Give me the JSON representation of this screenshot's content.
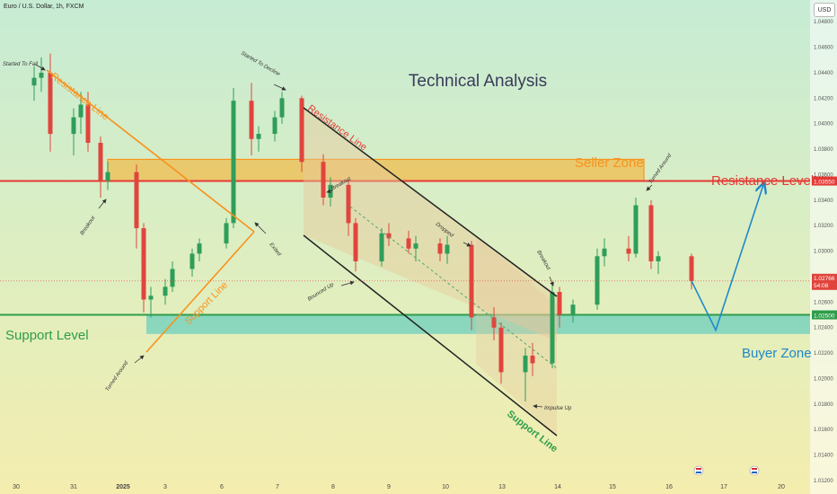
{
  "header": {
    "symbol_title": "Euro / U.S. Dollar, 1h, FXCM",
    "currency_button": "USD"
  },
  "chart_data": {
    "type": "candlestick",
    "title": "Technical Analysis",
    "ylim": [
      1.012,
      1.049
    ],
    "y_ticks": [
      "1.04800",
      "1.04600",
      "1.04400",
      "1.04200",
      "1.04000",
      "1.03800",
      "1.03600",
      "1.03400",
      "1.03200",
      "1.03000",
      "1.02800",
      "1.02600",
      "1.02400",
      "1.02200",
      "1.02000",
      "1.01800",
      "1.01600",
      "1.01400",
      "1.01200"
    ],
    "x_ticks": [
      "30",
      "31",
      "2025",
      "3",
      "6",
      "7",
      "8",
      "9",
      "10",
      "13",
      "14",
      "15",
      "16",
      "17",
      "20"
    ],
    "price_labels": {
      "resistance": "1.03550",
      "current_price": "1.02766",
      "countdown": "54:08",
      "support": "1.02500"
    },
    "series": [
      {
        "period": "30",
        "open": 1.043,
        "high": 1.0445,
        "low": 1.0418,
        "close": 1.0436
      },
      {
        "period": "30",
        "open": 1.0436,
        "high": 1.0452,
        "low": 1.0425,
        "close": 1.044
      },
      {
        "period": "30b",
        "open": 1.044,
        "high": 1.0455,
        "low": 1.0378,
        "close": 1.0392
      },
      {
        "period": "31",
        "open": 1.0392,
        "high": 1.0412,
        "low": 1.0375,
        "close": 1.0405
      },
      {
        "period": "31",
        "open": 1.0405,
        "high": 1.0425,
        "low": 1.0392,
        "close": 1.0415
      },
      {
        "period": "31",
        "open": 1.0415,
        "high": 1.0425,
        "low": 1.0378,
        "close": 1.0385
      },
      {
        "period": "31b",
        "open": 1.0385,
        "high": 1.039,
        "low": 1.0342,
        "close": 1.0355
      },
      {
        "period": "31b",
        "open": 1.0355,
        "high": 1.037,
        "low": 1.0348,
        "close": 1.0362
      },
      {
        "period": "2025",
        "open": 1.0362,
        "high": 1.0368,
        "low": 1.0302,
        "close": 1.0318
      },
      {
        "period": "2025",
        "open": 1.0318,
        "high": 1.0322,
        "low": 1.0252,
        "close": 1.0262
      },
      {
        "period": "2025b",
        "open": 1.0262,
        "high": 1.0272,
        "low": 1.0248,
        "close": 1.0265
      },
      {
        "period": "3",
        "open": 1.0265,
        "high": 1.0278,
        "low": 1.0258,
        "close": 1.0272
      },
      {
        "period": "3",
        "open": 1.0272,
        "high": 1.0292,
        "low": 1.0268,
        "close": 1.0286
      },
      {
        "period": "3b",
        "open": 1.0286,
        "high": 1.0302,
        "low": 1.028,
        "close": 1.0298
      },
      {
        "period": "3b",
        "open": 1.0298,
        "high": 1.031,
        "low": 1.0292,
        "close": 1.0306
      },
      {
        "period": "6",
        "open": 1.0306,
        "high": 1.0326,
        "low": 1.0302,
        "close": 1.0322
      },
      {
        "period": "6",
        "open": 1.0322,
        "high": 1.0428,
        "low": 1.0318,
        "close": 1.0418
      },
      {
        "period": "6b",
        "open": 1.0418,
        "high": 1.0432,
        "low": 1.0375,
        "close": 1.0388
      },
      {
        "period": "6b",
        "open": 1.0388,
        "high": 1.0398,
        "low": 1.0378,
        "close": 1.0392
      },
      {
        "period": "7",
        "open": 1.0392,
        "high": 1.041,
        "low": 1.0386,
        "close": 1.0405
      },
      {
        "period": "7",
        "open": 1.0405,
        "high": 1.0425,
        "low": 1.04,
        "close": 1.042
      },
      {
        "period": "7b",
        "open": 1.042,
        "high": 1.0422,
        "low": 1.0362,
        "close": 1.037
      },
      {
        "period": "8",
        "open": 1.037,
        "high": 1.0376,
        "low": 1.0336,
        "close": 1.0342
      },
      {
        "period": "8",
        "open": 1.0342,
        "high": 1.0358,
        "low": 1.0335,
        "close": 1.0352
      },
      {
        "period": "8b",
        "open": 1.0352,
        "high": 1.0356,
        "low": 1.0312,
        "close": 1.0322
      },
      {
        "period": "8b",
        "open": 1.0322,
        "high": 1.0326,
        "low": 1.0284,
        "close": 1.0292
      },
      {
        "period": "9",
        "open": 1.0292,
        "high": 1.0318,
        "low": 1.0288,
        "close": 1.0314
      },
      {
        "period": "9",
        "open": 1.0314,
        "high": 1.0322,
        "low": 1.0304,
        "close": 1.031
      },
      {
        "period": "9b",
        "open": 1.031,
        "high": 1.0316,
        "low": 1.0298,
        "close": 1.0302
      },
      {
        "period": "9b",
        "open": 1.0302,
        "high": 1.0312,
        "low": 1.0292,
        "close": 1.0306
      },
      {
        "period": "10",
        "open": 1.0306,
        "high": 1.031,
        "low": 1.0292,
        "close": 1.0298
      },
      {
        "period": "10",
        "open": 1.0298,
        "high": 1.0312,
        "low": 1.029,
        "close": 1.0305
      },
      {
        "period": "10b",
        "open": 1.0305,
        "high": 1.0308,
        "low": 1.0238,
        "close": 1.0248
      },
      {
        "period": "13",
        "open": 1.0248,
        "high": 1.0256,
        "low": 1.023,
        "close": 1.024
      },
      {
        "period": "13",
        "open": 1.024,
        "high": 1.0244,
        "low": 1.0196,
        "close": 1.0205
      },
      {
        "period": "13b",
        "open": 1.0205,
        "high": 1.0224,
        "low": 1.0182,
        "close": 1.0218
      },
      {
        "period": "13b",
        "open": 1.0218,
        "high": 1.0228,
        "low": 1.0202,
        "close": 1.0212
      },
      {
        "period": "14",
        "open": 1.0212,
        "high": 1.0275,
        "low": 1.0208,
        "close": 1.0268
      },
      {
        "period": "14",
        "open": 1.0268,
        "high": 1.0272,
        "low": 1.024,
        "close": 1.025
      },
      {
        "period": "14b",
        "open": 1.025,
        "high": 1.0262,
        "low": 1.0244,
        "close": 1.0258
      },
      {
        "period": "15",
        "open": 1.0258,
        "high": 1.0302,
        "low": 1.0254,
        "close": 1.0296
      },
      {
        "period": "15",
        "open": 1.0296,
        "high": 1.031,
        "low": 1.0288,
        "close": 1.0302
      },
      {
        "period": "15b",
        "open": 1.0302,
        "high": 1.0312,
        "low": 1.0292,
        "close": 1.0298
      },
      {
        "period": "15b",
        "open": 1.0298,
        "high": 1.0342,
        "low": 1.0295,
        "close": 1.0336
      },
      {
        "period": "16",
        "open": 1.0336,
        "high": 1.034,
        "low": 1.0286,
        "close": 1.0292
      },
      {
        "period": "16",
        "open": 1.0292,
        "high": 1.03,
        "low": 1.0282,
        "close": 1.0296
      },
      {
        "period": "16b",
        "open": 1.0296,
        "high": 1.0298,
        "low": 1.027,
        "close": 1.02766
      }
    ],
    "levels": {
      "resistance_level": 1.0355,
      "support_level": 1.025,
      "seller_zone": [
        1.0355,
        1.0372
      ],
      "buyer_zone": [
        1.0235,
        1.025
      ]
    },
    "projection": [
      {
        "period": "16b",
        "price": 1.02766
      },
      {
        "period": "17",
        "price": 1.0238
      },
      {
        "period": "17b",
        "price": 1.0352
      }
    ],
    "annotations": [
      {
        "label": "Resistance Line",
        "color": "#f7931e"
      },
      {
        "label": "Support Line",
        "color": "#f7931e"
      },
      {
        "label": "Resistance Line",
        "color": "#e53935"
      },
      {
        "label": "Support Line",
        "color": "#2e9d4a"
      },
      {
        "label": "Seller Zone",
        "color": "#f7931e"
      },
      {
        "label": "Buyer Zone",
        "color": "#1e88c9"
      },
      {
        "label": "Resistance Level",
        "color": "#e53935"
      },
      {
        "label": "Support Level",
        "color": "#2e9d4a"
      },
      {
        "label": "Started To Fall"
      },
      {
        "label": "Started To Decline"
      },
      {
        "label": "Breakout"
      },
      {
        "label": "Breakout"
      },
      {
        "label": "Breakout"
      },
      {
        "label": "Exited"
      },
      {
        "label": "Turned Around"
      },
      {
        "label": "Turned Around"
      },
      {
        "label": "Bounced Up"
      },
      {
        "label": "Dropped"
      },
      {
        "label": "Impulse Up"
      }
    ],
    "colors": {
      "up": "#2f9e5a",
      "down": "#e0453d",
      "resistance": "#e53935",
      "support": "#2e9d4a",
      "seller_zone": "#f7931e",
      "buyer_zone": "#3fc4c0"
    }
  }
}
